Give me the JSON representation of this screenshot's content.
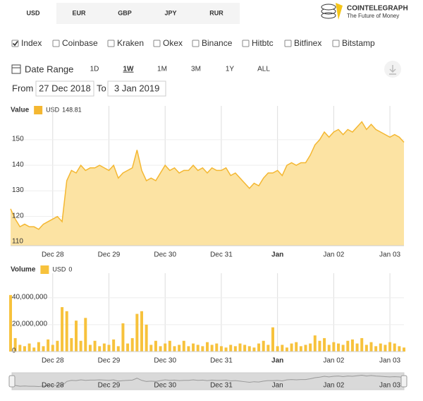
{
  "ui": {
    "currencies": [
      "USD",
      "EUR",
      "GBP",
      "JPY",
      "RUR"
    ],
    "selected_currency": "USD",
    "logo": {
      "name": "COINTELEGRAPH",
      "tagline": "The Future of Money"
    },
    "exchanges": [
      {
        "name": "Index",
        "color": "#f5a623",
        "checked": true
      },
      {
        "name": "Coinbase",
        "color": "#8a5fb5",
        "checked": false
      },
      {
        "name": "Kraken",
        "color": "#2a6db5",
        "checked": false
      },
      {
        "name": "Okex",
        "color": "#f08c1e",
        "checked": false
      },
      {
        "name": "Binance",
        "color": "#333333",
        "checked": false
      },
      {
        "name": "Hitbtc",
        "color": "#5a9a3a",
        "checked": false
      },
      {
        "name": "Bitfinex",
        "color": "#8e5aa8",
        "checked": false
      },
      {
        "name": "Bitstamp",
        "color": "#d9342b",
        "checked": false
      }
    ],
    "date_range": {
      "label": "Date Range",
      "buttons": [
        "1D",
        "1W",
        "1M",
        "3M",
        "1Y",
        "ALL"
      ],
      "selected": "1W",
      "from_label": "From",
      "from": "27 Dec 2018",
      "to_label": "To",
      "to": "3 Jan 2019"
    }
  },
  "chart_data": [
    {
      "type": "area",
      "title": "Value",
      "categories": [
        null,
        null,
        null,
        null,
        null,
        null,
        null,
        null,
        null,
        "Dec 28",
        null,
        null,
        null,
        null,
        null,
        null,
        null,
        null,
        null,
        null,
        null,
        "Dec 29",
        null,
        null,
        null,
        null,
        null,
        null,
        null,
        null,
        null,
        null,
        null,
        "Dec 30",
        null,
        null,
        null,
        null,
        null,
        null,
        null,
        null,
        null,
        null,
        null,
        "Dec 31",
        null,
        null,
        null,
        null,
        null,
        null,
        null,
        null,
        null,
        null,
        null,
        "Jan",
        null,
        null,
        null,
        null,
        null,
        null,
        null,
        null,
        null,
        null,
        null,
        "Jan 02",
        null,
        null,
        null,
        null,
        null,
        null,
        null,
        null,
        null,
        null,
        null,
        "Jan 03",
        null,
        null,
        null
      ],
      "series": [
        {
          "name": "USD",
          "legend_value": 148.81,
          "color": "#f4b731",
          "fill": "#fce3a3",
          "values": [
            123,
            119,
            116,
            117,
            116,
            116,
            115,
            117,
            118,
            119,
            120,
            118,
            134,
            138,
            137,
            140,
            138,
            139,
            139,
            140,
            139,
            138,
            140,
            135,
            137,
            138,
            139,
            146,
            138,
            134,
            135,
            134,
            137,
            140,
            138,
            139,
            137,
            138,
            138,
            140,
            138,
            139,
            137,
            139,
            138,
            138,
            139,
            136,
            137,
            135,
            133,
            131,
            133,
            132,
            135,
            137,
            137,
            138,
            136,
            140,
            141,
            140,
            141,
            141,
            144,
            148,
            150,
            153,
            151,
            153,
            154,
            152,
            154,
            153,
            155,
            157,
            154,
            156,
            154,
            153,
            152,
            151,
            152,
            151,
            149
          ]
        }
      ],
      "ylim": [
        108.6,
        161
      ],
      "yticks": [
        110,
        120,
        130,
        140,
        150
      ],
      "grid": true
    },
    {
      "type": "bar",
      "title": "Volume",
      "series": [
        {
          "name": "USD",
          "legend_value": 0,
          "color": "#f7c23c",
          "values": [
            42000000,
            10000000,
            5000000,
            4000000,
            6000000,
            3000000,
            7000000,
            4000000,
            9000000,
            5000000,
            8000000,
            33000000,
            30000000,
            10000000,
            23000000,
            8000000,
            25000000,
            5000000,
            8000000,
            4000000,
            6000000,
            5000000,
            9000000,
            4000000,
            21000000,
            6000000,
            10000000,
            28000000,
            30000000,
            20000000,
            5000000,
            8000000,
            4000000,
            6000000,
            8000000,
            4000000,
            5000000,
            8000000,
            4000000,
            6000000,
            5000000,
            4000000,
            7000000,
            5000000,
            6000000,
            4000000,
            3000000,
            5000000,
            4000000,
            6000000,
            5000000,
            4000000,
            3000000,
            6000000,
            8000000,
            5000000,
            18000000,
            4000000,
            5000000,
            3000000,
            6000000,
            7000000,
            4000000,
            5000000,
            6000000,
            12000000,
            8000000,
            10000000,
            5000000,
            7000000,
            6000000,
            5000000,
            8000000,
            9000000,
            6000000,
            10000000,
            5000000,
            7000000,
            4000000,
            6000000,
            5000000,
            7000000,
            6000000,
            4000000,
            3000000
          ]
        }
      ],
      "ylim": [
        0,
        54000000
      ],
      "yticks": [
        0,
        {
          "value": 20000000,
          "label": "20,000,000"
        },
        {
          "value": 40000000,
          "label": "40,000,000"
        }
      ],
      "grid": true
    }
  ]
}
